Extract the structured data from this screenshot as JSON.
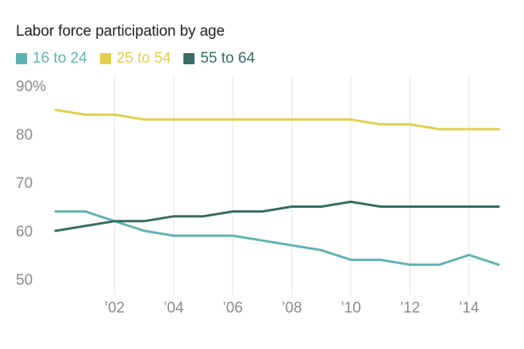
{
  "chart_data": {
    "type": "line",
    "title": "Labor force participation by age",
    "xlabel": "",
    "ylabel": "",
    "x": [
      2000,
      2001,
      2002,
      2003,
      2004,
      2005,
      2006,
      2007,
      2008,
      2009,
      2010,
      2011,
      2012,
      2013,
      2014,
      2015
    ],
    "xlim": [
      2000,
      2015
    ],
    "ylim": [
      50,
      90
    ],
    "x_ticks": [
      2002,
      2004,
      2006,
      2008,
      2010,
      2012,
      2014
    ],
    "x_tick_labels": [
      "’02",
      "’04",
      "’06",
      "’08",
      "’10",
      "’12",
      "’14"
    ],
    "y_ticks": [
      50,
      60,
      70,
      80,
      90
    ],
    "y_tick_labels": [
      "50",
      "60",
      "70",
      "80",
      "90%"
    ],
    "grid": "vertical",
    "legend": "top-left",
    "series": [
      {
        "name": "16 to 24",
        "color": "#5fb3af",
        "values": [
          64,
          64,
          62,
          60,
          59,
          59,
          59,
          58,
          57,
          56,
          54,
          54,
          53,
          53,
          55,
          53
        ]
      },
      {
        "name": "25 to 54",
        "color": "#e2cf4c",
        "values": [
          85,
          84,
          84,
          83,
          83,
          83,
          83,
          83,
          83,
          83,
          83,
          82,
          82,
          81,
          81,
          81
        ]
      },
      {
        "name": "55 to 64",
        "color": "#386b61",
        "values": [
          60,
          61,
          62,
          62,
          63,
          63,
          64,
          64,
          65,
          65,
          66,
          65,
          65,
          65,
          65,
          65
        ]
      }
    ]
  }
}
